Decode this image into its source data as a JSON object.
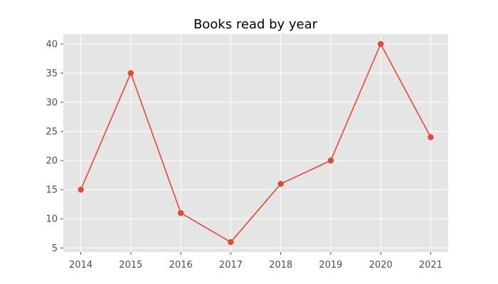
{
  "chart_data": {
    "type": "line",
    "title": "Books read by year",
    "xlabel": "",
    "ylabel": "",
    "x": [
      2014,
      2015,
      2016,
      2017,
      2018,
      2019,
      2020,
      2021
    ],
    "series": [
      {
        "values": [
          15,
          35,
          11,
          6,
          16,
          20,
          40,
          24
        ],
        "color": "#E24A33"
      }
    ],
    "yticks": [
      5,
      10,
      15,
      20,
      25,
      30,
      35,
      40
    ],
    "ylim": [
      4.3,
      41.7
    ],
    "xlim": [
      2013.65,
      2021.35
    ],
    "grid": true,
    "background": "#E5E5E5",
    "grid_color": "#FFFFFF",
    "legend": "none"
  }
}
